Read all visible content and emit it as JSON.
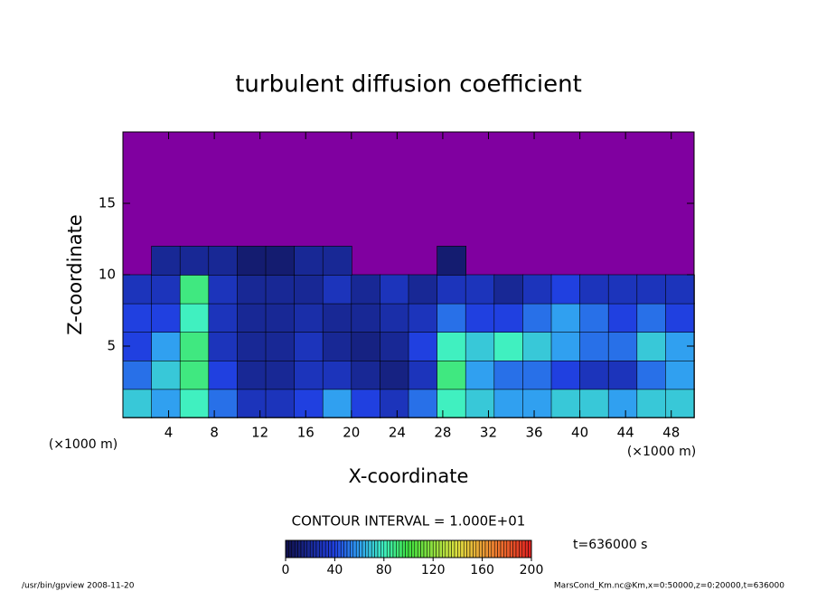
{
  "chart_data": {
    "type": "heatmap",
    "title": "turbulent diffusion coefficient",
    "xlabel": "X-coordinate",
    "ylabel": "Z-coordinate",
    "x_unit_label": "(×1000 m)",
    "xlim": [
      0,
      50
    ],
    "xticks": [
      4,
      8,
      12,
      16,
      20,
      24,
      28,
      32,
      36,
      40,
      44,
      48
    ],
    "ylim": [
      0,
      20
    ],
    "yticks": [
      5,
      10,
      15
    ],
    "background_color": "#8000a0",
    "z": [
      [
        70,
        60,
        80,
        50,
        30,
        30,
        40,
        60,
        40,
        30,
        50,
        80,
        70,
        60,
        60,
        70,
        70,
        60,
        70,
        70
      ],
      [
        50,
        70,
        90,
        40,
        20,
        20,
        30,
        30,
        20,
        15,
        30,
        90,
        60,
        50,
        50,
        40,
        30,
        30,
        50,
        60
      ],
      [
        40,
        60,
        90,
        30,
        20,
        20,
        30,
        20,
        15,
        20,
        40,
        80,
        70,
        80,
        70,
        60,
        50,
        50,
        70,
        60
      ],
      [
        40,
        40,
        80,
        30,
        20,
        20,
        25,
        20,
        20,
        25,
        30,
        50,
        40,
        40,
        50,
        60,
        50,
        40,
        50,
        40
      ],
      [
        30,
        30,
        90,
        30,
        20,
        20,
        20,
        30,
        20,
        30,
        20,
        30,
        30,
        20,
        30,
        40,
        30,
        30,
        30,
        30
      ],
      [
        null,
        20,
        20,
        20,
        10,
        10,
        20,
        20,
        null,
        null,
        null,
        10,
        null,
        null,
        null,
        null,
        null,
        null,
        null,
        null
      ],
      [
        null,
        null,
        null,
        null,
        null,
        null,
        null,
        null,
        null,
        null,
        null,
        null,
        null,
        null,
        null,
        null,
        null,
        null,
        null,
        null
      ],
      [
        null,
        null,
        null,
        null,
        null,
        null,
        null,
        null,
        null,
        null,
        null,
        null,
        null,
        null,
        null,
        null,
        null,
        null,
        null,
        null
      ],
      [
        null,
        null,
        null,
        null,
        null,
        null,
        null,
        null,
        null,
        null,
        null,
        null,
        null,
        null,
        null,
        null,
        null,
        null,
        null,
        null
      ],
      [
        null,
        null,
        null,
        null,
        null,
        null,
        null,
        null,
        null,
        null,
        null,
        null,
        null,
        null,
        null,
        null,
        null,
        null,
        null,
        null
      ]
    ],
    "colorscale": [
      [
        0,
        "#10104a"
      ],
      [
        40,
        "#2040e0"
      ],
      [
        60,
        "#30a0f0"
      ],
      [
        80,
        "#40f0c0"
      ],
      [
        100,
        "#40e040"
      ],
      [
        140,
        "#e0e040"
      ],
      [
        170,
        "#f08030"
      ],
      [
        200,
        "#e02020"
      ]
    ],
    "colorbar_lim": [
      0,
      200
    ],
    "colorbar_ticks": [
      0,
      40,
      80,
      120,
      160,
      200
    ],
    "contour_interval": "CONTOUR INTERVAL = 1.000E+01",
    "time_label": "t=636000 s",
    "footer_left": "/usr/bin/gpview   2008-11-20",
    "footer_right": "MarsCond_Km.nc@Km,x=0:50000,z=0:20000,t=636000"
  }
}
